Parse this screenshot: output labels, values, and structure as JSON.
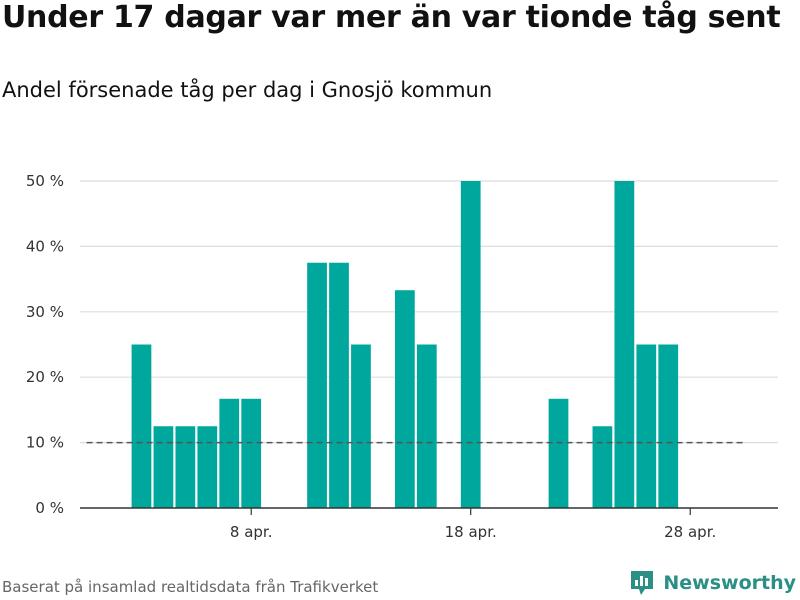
{
  "title": "Under 17 dagar var mer än var tionde tåg sent",
  "subtitle": "Andel försenade tåg per dag i Gnosjö kommun",
  "source": "Baserat på insamlad realtidsdata från Trafikverket",
  "brand": "Newsworthy",
  "colors": {
    "bar": "#00a79d",
    "grid": "#dddddd",
    "reference": "#555555",
    "axis": "#333333",
    "brand": "#2a8f84"
  },
  "chart_data": {
    "type": "bar",
    "x_unit": "day of April",
    "x": [
      1,
      2,
      3,
      4,
      5,
      6,
      7,
      8,
      9,
      10,
      11,
      12,
      13,
      14,
      15,
      16,
      17,
      18,
      19,
      20,
      21,
      22,
      23,
      24,
      25,
      26,
      27,
      28,
      29,
      30
    ],
    "values": [
      0,
      0,
      25,
      12.5,
      12.5,
      12.5,
      16.7,
      16.7,
      0,
      0,
      37.5,
      37.5,
      25,
      0,
      33.3,
      25,
      0,
      50,
      0,
      0,
      0,
      16.7,
      0,
      12.5,
      50,
      25,
      25,
      0,
      0,
      0
    ],
    "xticks": [
      {
        "x": 8,
        "label": "8 apr."
      },
      {
        "x": 18,
        "label": "18 apr."
      },
      {
        "x": 28,
        "label": "28 apr."
      }
    ],
    "yticks": [
      {
        "y": 0,
        "label": "0 %"
      },
      {
        "y": 10,
        "label": "10 %"
      },
      {
        "y": 20,
        "label": "20 %"
      },
      {
        "y": 30,
        "label": "30 %"
      },
      {
        "y": 40,
        "label": "40 %"
      },
      {
        "y": 50,
        "label": "50 %"
      }
    ],
    "ylim": [
      0,
      50
    ],
    "xlim": [
      0.2,
      32
    ],
    "reference_line": 10,
    "grid": true,
    "legend": false
  }
}
